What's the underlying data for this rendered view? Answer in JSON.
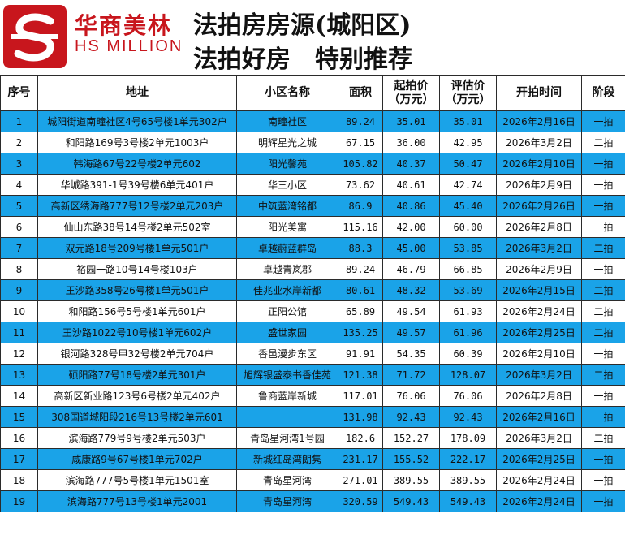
{
  "header": {
    "brand_cn": "华商美林",
    "brand_en": "HS MILLION",
    "title_line1": "法拍房房源(城阳区)",
    "title_line2_a": "法拍好房",
    "title_line2_b": "特别推荐",
    "accent_color": "#c8161d"
  },
  "table": {
    "headers": {
      "index": "序号",
      "address": "地址",
      "community": "小区名称",
      "area": "面积",
      "start_price": "起拍价\n（万元）",
      "appraisal": "评估价\n（万元）",
      "start_time": "开拍时间",
      "stage": "阶段"
    },
    "highlight_color": "#1aa3e8",
    "rows": [
      {
        "index": "1",
        "address": "城阳街道南疃社区4号65号楼1单元302户",
        "community": "南疃社区",
        "area": "89.24",
        "start_price": "35.01",
        "appraisal": "35.01",
        "start_time": "2026年2月16日",
        "stage": "一拍",
        "highlight": true
      },
      {
        "index": "2",
        "address": "和阳路169号3号楼2单元1003户",
        "community": "明辉星光之城",
        "area": "67.15",
        "start_price": "36.00",
        "appraisal": "42.95",
        "start_time": "2026年3月2日",
        "stage": "二拍",
        "highlight": false
      },
      {
        "index": "3",
        "address": "韩海路67号22号楼2单元602",
        "community": "阳光馨苑",
        "area": "105.82",
        "start_price": "40.37",
        "appraisal": "50.47",
        "start_time": "2026年2月10日",
        "stage": "一拍",
        "highlight": true
      },
      {
        "index": "4",
        "address": "华城路391-1号39号楼6单元401户",
        "community": "华三小区",
        "area": "73.62",
        "start_price": "40.61",
        "appraisal": "42.74",
        "start_time": "2026年2月9日",
        "stage": "一拍",
        "highlight": false
      },
      {
        "index": "5",
        "address": "高新区绣海路777号12号楼2单元203户",
        "community": "中筑蓝湾铭都",
        "area": "86.9",
        "start_price": "40.86",
        "appraisal": "45.40",
        "start_time": "2026年2月26日",
        "stage": "一拍",
        "highlight": true
      },
      {
        "index": "6",
        "address": "仙山东路38号14号楼2单元502室",
        "community": "阳光美寓",
        "area": "115.16",
        "start_price": "42.00",
        "appraisal": "60.00",
        "start_time": "2026年2月8日",
        "stage": "一拍",
        "highlight": false
      },
      {
        "index": "7",
        "address": "双元路18号209号楼1单元501户",
        "community": "卓越蔚蓝群岛",
        "area": "88.3",
        "start_price": "45.00",
        "appraisal": "53.85",
        "start_time": "2026年3月2日",
        "stage": "二拍",
        "highlight": true
      },
      {
        "index": "8",
        "address": "裕园一路10号14号楼103户",
        "community": "卓越青岚郡",
        "area": "89.24",
        "start_price": "46.79",
        "appraisal": "66.85",
        "start_time": "2026年2月9日",
        "stage": "一拍",
        "highlight": false
      },
      {
        "index": "9",
        "address": "王沙路358号26号楼1单元501户",
        "community": "佳兆业水岸新都",
        "area": "80.61",
        "start_price": "48.32",
        "appraisal": "53.69",
        "start_time": "2026年2月15日",
        "stage": "二拍",
        "highlight": true
      },
      {
        "index": "10",
        "address": "和阳路156号5号楼1单元601户",
        "community": "正阳公馆",
        "area": "65.89",
        "start_price": "49.54",
        "appraisal": "61.93",
        "start_time": "2026年2月24日",
        "stage": "二拍",
        "highlight": false
      },
      {
        "index": "11",
        "address": "王沙路1022号10号楼1单元602户",
        "community": "盛世家园",
        "area": "135.25",
        "start_price": "49.57",
        "appraisal": "61.96",
        "start_time": "2026年2月25日",
        "stage": "二拍",
        "highlight": true
      },
      {
        "index": "12",
        "address": "银河路328号甲32号楼2单元704户",
        "community": "香邑漫步东区",
        "area": "91.91",
        "start_price": "54.35",
        "appraisal": "60.39",
        "start_time": "2026年2月10日",
        "stage": "一拍",
        "highlight": false
      },
      {
        "index": "13",
        "address": "硕阳路77号18号楼2单元301户",
        "community": "旭辉银盛泰书香佳苑",
        "area": "121.38",
        "start_price": "71.72",
        "appraisal": "128.07",
        "start_time": "2026年3月2日",
        "stage": "二拍",
        "highlight": true
      },
      {
        "index": "14",
        "address": "高新区新业路123号6号楼2单元402户",
        "community": "鲁商蓝岸新城",
        "area": "117.01",
        "start_price": "76.06",
        "appraisal": "76.06",
        "start_time": "2026年2月8日",
        "stage": "一拍",
        "highlight": false
      },
      {
        "index": "15",
        "address": "308国道城阳段216号13号楼2单元601",
        "community": "",
        "area": "131.98",
        "start_price": "92.43",
        "appraisal": "92.43",
        "start_time": "2026年2月16日",
        "stage": "一拍",
        "highlight": true
      },
      {
        "index": "16",
        "address": "滨海路779号9号楼2单元503户",
        "community": "青岛星河湾1号园",
        "area": "182.6",
        "start_price": "152.27",
        "appraisal": "178.09",
        "start_time": "2026年3月2日",
        "stage": "二拍",
        "highlight": false
      },
      {
        "index": "17",
        "address": "咸康路9号67号楼1单元702户",
        "community": "新城红岛湾朗隽",
        "area": "231.17",
        "start_price": "155.52",
        "appraisal": "222.17",
        "start_time": "2026年2月25日",
        "stage": "一拍",
        "highlight": true
      },
      {
        "index": "18",
        "address": "滨海路777号5号楼1单元1501室",
        "community": "青岛星河湾",
        "area": "271.01",
        "start_price": "389.55",
        "appraisal": "389.55",
        "start_time": "2026年2月24日",
        "stage": "一拍",
        "highlight": false
      },
      {
        "index": "19",
        "address": "滨海路777号13号楼1单元2001",
        "community": "青岛星河湾",
        "area": "320.59",
        "start_price": "549.43",
        "appraisal": "549.43",
        "start_time": "2026年2月24日",
        "stage": "一拍",
        "highlight": true
      }
    ]
  }
}
